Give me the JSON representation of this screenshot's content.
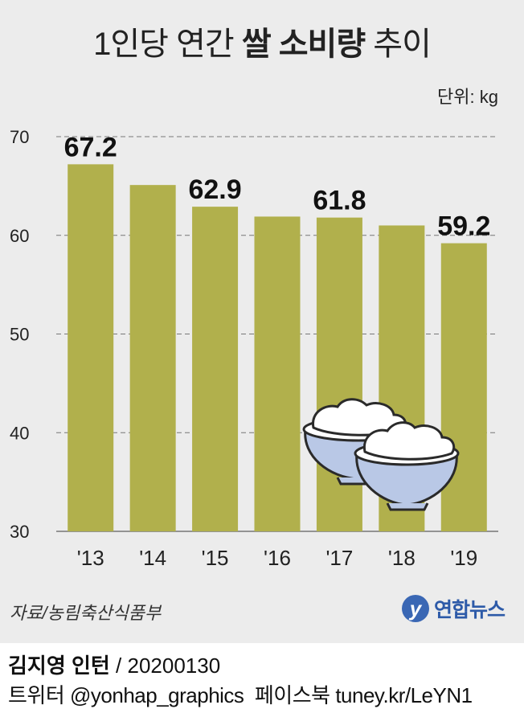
{
  "header": {
    "title_pre": "1인당 연간",
    "title_bold": "쌀 소비량",
    "title_post": "추이",
    "unit": "단위: kg"
  },
  "chart_data": {
    "type": "bar",
    "title": "1인당 연간 쌀 소비량 추이",
    "ylabel": "",
    "xlabel": "",
    "unit": "kg",
    "categories": [
      "'13",
      "'14",
      "'15",
      "'16",
      "'17",
      "'18",
      "'19"
    ],
    "values": [
      67.2,
      65.1,
      62.9,
      61.9,
      61.8,
      61.0,
      59.2
    ],
    "labels": [
      "67.2",
      "",
      "62.9",
      "",
      "61.8",
      "",
      "59.2"
    ],
    "ylim": [
      30,
      70
    ],
    "yticks": [
      30,
      40,
      50,
      60,
      70
    ],
    "grid": true,
    "bar_color": "#b1b04c"
  },
  "illustration": {
    "icon": "rice-bowls-icon"
  },
  "footer": {
    "source": "자료/농림축산식품부",
    "brand_logo": "y",
    "brand_name": "연합뉴스",
    "author": "김지영 인턴",
    "date_sep": " / ",
    "date": "20200130",
    "twitter_label": "트위터",
    "twitter": "@yonhap_graphics",
    "facebook_label": "페이스북",
    "facebook": "tuney.kr/LeYN1"
  }
}
